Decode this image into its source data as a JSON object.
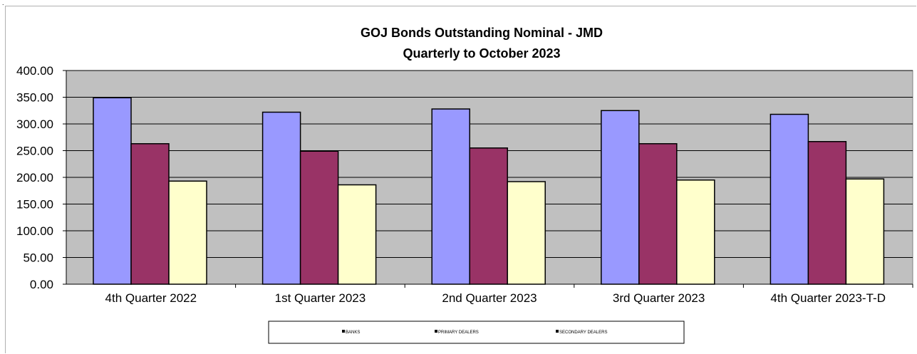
{
  "chart_data": {
    "type": "bar",
    "title": "GOJ Bonds Outstanding Nominal - JMD",
    "subtitle": "Quarterly to October 2023",
    "categories": [
      "4th Quarter 2022",
      "1st Quarter 2023",
      "2nd Quarter 2023",
      "3rd Quarter 2023",
      "4th Quarter 2023-T-D"
    ],
    "series": [
      {
        "name": "BANKS",
        "color": "#9999ff",
        "values": [
          349,
          322,
          328,
          325,
          318
        ]
      },
      {
        "name": "PRIMARY DEALERS",
        "color": "#993366",
        "values": [
          263,
          249,
          255,
          263,
          267
        ]
      },
      {
        "name": "SECONDARY DEALERS",
        "color": "#ffffcc",
        "values": [
          193,
          186,
          192,
          195,
          197
        ]
      }
    ],
    "ylim": [
      0,
      400
    ],
    "yticks": [
      "0.00",
      "50.00",
      "100.00",
      "150.00",
      "200.00",
      "250.00",
      "300.00",
      "350.00",
      "400.00"
    ],
    "grid": true,
    "plot_background": "#c0c0c0",
    "legend_position": "bottom"
  },
  "corner_mark": "."
}
